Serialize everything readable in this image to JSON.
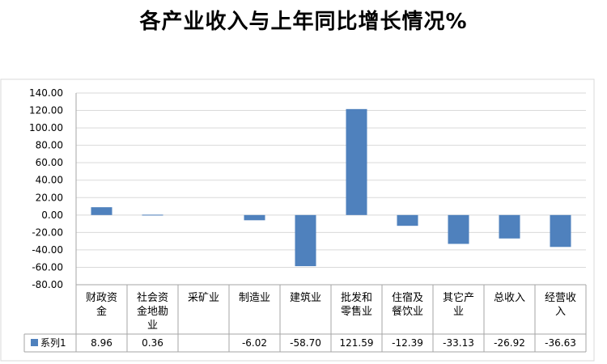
{
  "chart_data": {
    "type": "bar",
    "title": "各产业收入与上年同比增长情况%",
    "categories": [
      [
        "财政资",
        "金"
      ],
      [
        "社会资",
        "金地勘",
        "业"
      ],
      [
        "采矿业"
      ],
      [
        "制造业"
      ],
      [
        "建筑业"
      ],
      [
        "批发和",
        "零售业"
      ],
      [
        "住宿及",
        "餐饮业"
      ],
      [
        "其它产",
        "业"
      ],
      [
        "总收入"
      ],
      [
        "经营收",
        "入"
      ]
    ],
    "series": [
      {
        "name": "系列1",
        "values": [
          8.96,
          0.36,
          null,
          -6.02,
          -58.7,
          121.59,
          -12.39,
          -33.13,
          -26.92,
          -36.63
        ],
        "labels": [
          "8.96",
          "0.36",
          "",
          "-6.02",
          "-58.70",
          "121.59",
          "-12.39",
          "-33.13",
          "-26.92",
          "-36.63"
        ]
      }
    ],
    "ylim": [
      -80,
      140
    ],
    "y_ticks": [
      "-80.00",
      "-60.00",
      "-40.00",
      "-20.00",
      "0.00",
      "20.00",
      "40.00",
      "60.00",
      "80.00",
      "100.00",
      "120.00",
      "140.00"
    ],
    "grid": true,
    "legend": "data-table",
    "bar_color": "#4F81BD"
  }
}
